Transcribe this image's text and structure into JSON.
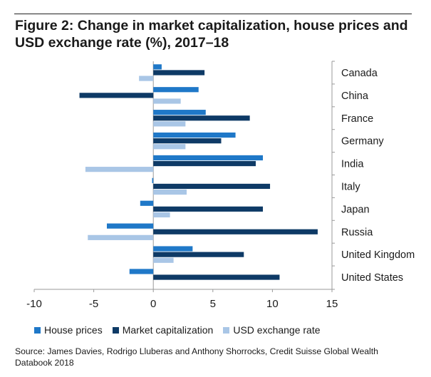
{
  "header": {
    "title": "Figure 2: Change in market capitalization, house prices and USD exchange rate (%), 2017–18"
  },
  "chart_data": {
    "type": "bar",
    "orientation": "horizontal",
    "categories": [
      "Canada",
      "China",
      "France",
      "Germany",
      "India",
      "Italy",
      "Japan",
      "Russia",
      "United Kingdom",
      "United States"
    ],
    "series": [
      {
        "name": "House prices",
        "color": "#1f78c8",
        "values": [
          0.7,
          3.8,
          4.4,
          6.9,
          9.2,
          -0.1,
          -1.1,
          -3.9,
          3.3,
          -2.0
        ]
      },
      {
        "name": "Market capitalization",
        "color": "#0e3a66",
        "values": [
          4.3,
          -6.2,
          8.1,
          5.7,
          8.6,
          9.8,
          9.2,
          13.8,
          7.6,
          10.6
        ]
      },
      {
        "name": "USD exchange rate",
        "color": "#a9c6e6",
        "values": [
          -1.2,
          2.3,
          2.7,
          2.7,
          -5.7,
          2.8,
          1.4,
          -5.5,
          1.7,
          null
        ]
      }
    ],
    "xlim": [
      -10,
      15
    ],
    "xticks": [
      "-10",
      "-5",
      "0",
      "5",
      "10",
      "15"
    ],
    "grid": false,
    "legend_position": "bottom"
  },
  "source": "Source: James Davies, Rodrigo Lluberas and Anthony Shorrocks, Credit Suisse Global Wealth Databook 2018"
}
